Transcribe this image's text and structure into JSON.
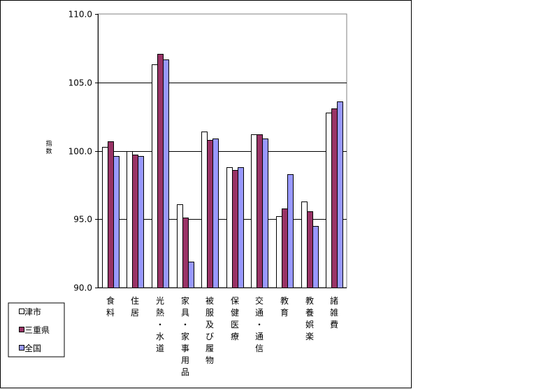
{
  "chart_data": {
    "type": "bar",
    "ylabel": "指数",
    "ylim": [
      90.0,
      110.0
    ],
    "yticks": [
      90.0,
      95.0,
      100.0,
      105.0,
      110.0
    ],
    "grid": true,
    "legend_position": "bottom-left",
    "categories": [
      "食料",
      "住居",
      "光熱・水道",
      "家具・家事用品",
      "被服及び履物",
      "保健医療",
      "交通・通信",
      "教育",
      "教養娯楽",
      "諸雑費"
    ],
    "series": [
      {
        "name": "津市",
        "color": "#ffffff",
        "values": [
          100.3,
          100.0,
          106.3,
          96.1,
          101.4,
          98.8,
          101.2,
          95.2,
          96.3,
          102.8
        ]
      },
      {
        "name": "三重県",
        "color": "#993366",
        "values": [
          100.7,
          99.7,
          107.1,
          95.1,
          100.8,
          98.6,
          101.2,
          95.8,
          95.6,
          103.1
        ]
      },
      {
        "name": "全国",
        "color": "#9999ff",
        "values": [
          99.6,
          99.6,
          106.7,
          91.9,
          100.9,
          98.8,
          100.9,
          98.3,
          94.5,
          103.6
        ]
      }
    ]
  }
}
